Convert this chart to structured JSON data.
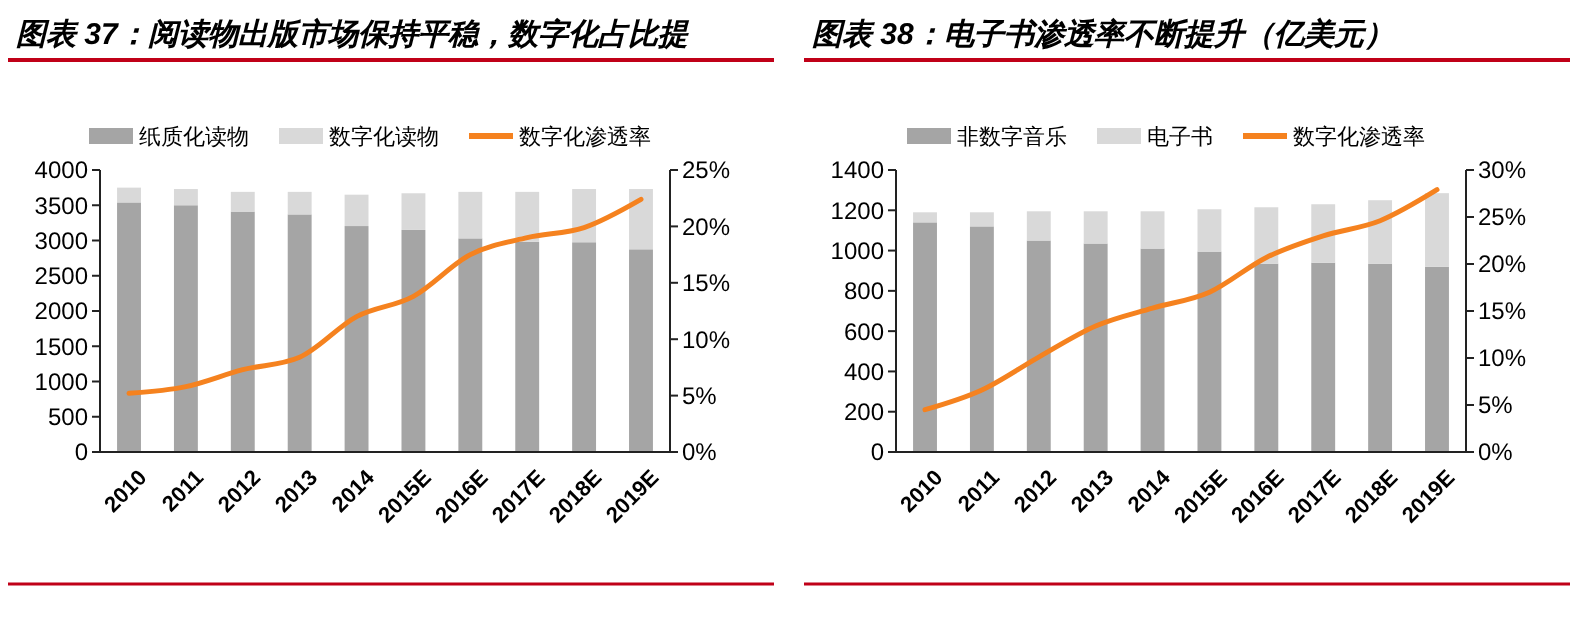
{
  "chart_data": [
    {
      "type": "bar",
      "title": "图表 37：阅读物出版市场保持平稳，数字化占比提",
      "categories": [
        "2010",
        "2011",
        "2012",
        "2013",
        "2014",
        "2015E",
        "2016E",
        "2017E",
        "2018E",
        "2019E"
      ],
      "stacked": true,
      "legend": "top",
      "ylim": [
        0,
        4000
      ],
      "yticks": [
        0,
        500,
        1000,
        1500,
        2000,
        2500,
        3000,
        3500,
        4000
      ],
      "y2lim": [
        0,
        25
      ],
      "y2ticks": [
        {
          "value": 0,
          "label": "0%"
        },
        {
          "value": 5,
          "label": "5%"
        },
        {
          "value": 10,
          "label": "10%"
        },
        {
          "value": 15,
          "label": "15%"
        },
        {
          "value": 20,
          "label": "20%"
        },
        {
          "value": 25,
          "label": "25%"
        }
      ],
      "series": [
        {
          "name": "纸质化读物",
          "color": "#a5a5a5",
          "values": [
            3540,
            3500,
            3410,
            3370,
            3205,
            3150,
            3030,
            2980,
            2975,
            2875
          ]
        },
        {
          "name": "数字化读物",
          "color": "#d9d9d9",
          "values": [
            210,
            230,
            280,
            320,
            445,
            520,
            660,
            710,
            755,
            855
          ]
        },
        {
          "name": "数字化渗透率",
          "type": "line",
          "axis": "y2",
          "color": "#f5821f",
          "values": [
            5.2,
            5.8,
            7.3,
            8.4,
            12.0,
            13.8,
            17.5,
            19.0,
            19.9,
            22.4
          ]
        }
      ]
    },
    {
      "type": "bar",
      "title": "图表 38：电子书渗透率不断提升（亿美元）",
      "categories": [
        "2010",
        "2011",
        "2012",
        "2013",
        "2014",
        "2015E",
        "2016E",
        "2017E",
        "2018E",
        "2019E"
      ],
      "stacked": true,
      "legend": "top",
      "ylim": [
        0,
        1400
      ],
      "yticks": [
        0,
        200,
        400,
        600,
        800,
        1000,
        1200,
        1400
      ],
      "y2lim": [
        0,
        30
      ],
      "y2ticks": [
        {
          "value": 0,
          "label": "0%"
        },
        {
          "value": 5,
          "label": "5%"
        },
        {
          "value": 10,
          "label": "10%"
        },
        {
          "value": 15,
          "label": "15%"
        },
        {
          "value": 20,
          "label": "20%"
        },
        {
          "value": 25,
          "label": "25%"
        },
        {
          "value": 30,
          "label": "30%"
        }
      ],
      "series": [
        {
          "name": "非数字音乐",
          "color": "#a5a5a5",
          "values": [
            1140,
            1120,
            1050,
            1035,
            1010,
            995,
            935,
            940,
            935,
            920
          ]
        },
        {
          "name": "电子书",
          "color": "#d9d9d9",
          "values": [
            50,
            70,
            145,
            160,
            185,
            210,
            280,
            290,
            315,
            365
          ]
        },
        {
          "name": "数字化渗透率",
          "type": "line",
          "axis": "y2",
          "color": "#f5821f",
          "values": [
            4.5,
            6.6,
            10.1,
            13.4,
            15.3,
            17.0,
            20.7,
            23.0,
            24.6,
            27.9
          ]
        }
      ]
    }
  ]
}
